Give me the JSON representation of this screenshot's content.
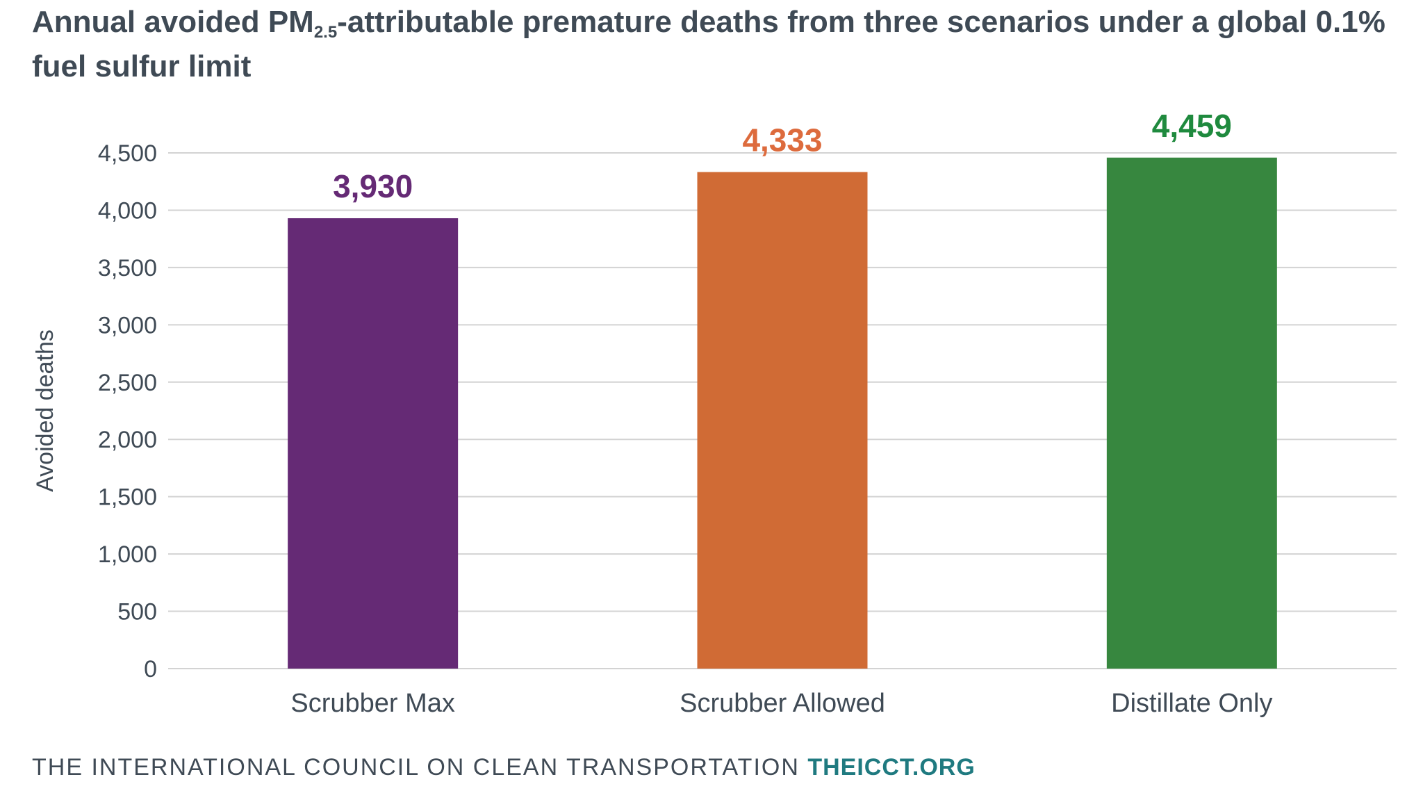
{
  "title": {
    "prefix": "Annual avoided PM",
    "subscript": "2.5",
    "suffix": "-attributable premature deaths from three scenarios under a global 0.1% fuel sulfur limit"
  },
  "footer": {
    "org_name": "THE INTERNATIONAL COUNCIL ON CLEAN TRANSPORTATION",
    "website": "THEICCT.ORG"
  },
  "colors": {
    "gridline": "#d3d3d3",
    "axis_text": "#3f4a55",
    "website": "#1f7a80"
  },
  "chart_data": {
    "type": "bar",
    "categories": [
      "Scrubber Max",
      "Scrubber Allowed",
      "Distillate Only"
    ],
    "values": [
      3930,
      4333,
      4459
    ],
    "value_labels": [
      "3,930",
      "4,333",
      "4,459"
    ],
    "bar_colors": [
      "#652a75",
      "#d06b35",
      "#37873f"
    ],
    "label_colors": [
      "#652a75",
      "#dd6b3d",
      "#1f8a3e"
    ],
    "ylabel": "Avoided deaths",
    "xlabel": "",
    "ylim": [
      0,
      4500
    ],
    "yticks": [
      0,
      500,
      1000,
      1500,
      2000,
      2500,
      3000,
      3500,
      4000,
      4500
    ],
    "ytick_labels": [
      "0",
      "500",
      "1,000",
      "1,500",
      "2,000",
      "2,500",
      "3,000",
      "3,500",
      "4,000",
      "4,500"
    ],
    "grid": true,
    "legend": "none"
  }
}
